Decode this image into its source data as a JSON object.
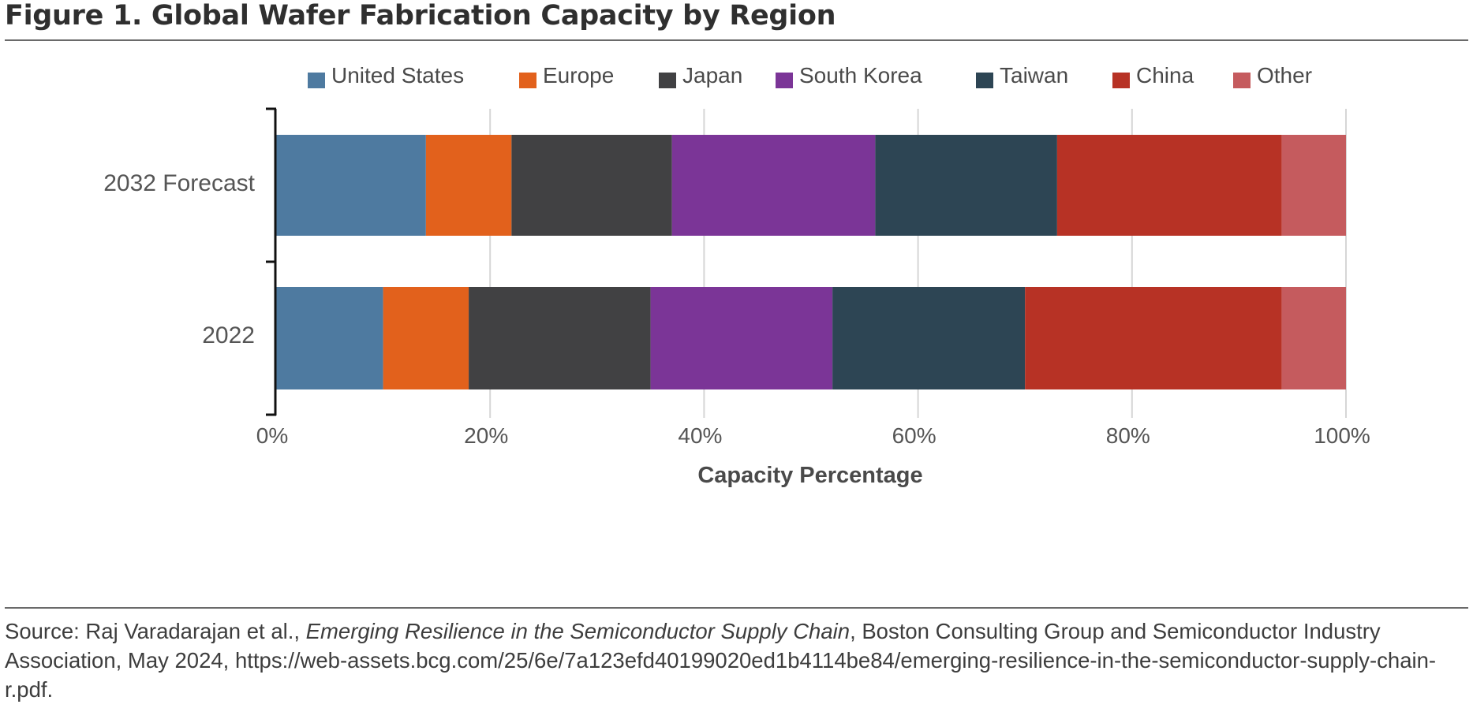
{
  "figure": {
    "title": "Figure 1. Global Wafer Fabrication Capacity by Region"
  },
  "chart_data": {
    "type": "bar",
    "orientation": "horizontal",
    "stacked": true,
    "categories": [
      "2032 Forecast",
      "2022"
    ],
    "series": [
      {
        "name": "United States",
        "color": "#4e7aa0",
        "values": [
          14,
          10
        ]
      },
      {
        "name": "Europe",
        "color": "#e2611c",
        "values": [
          8,
          8
        ]
      },
      {
        "name": "Japan",
        "color": "#414143",
        "values": [
          15,
          17
        ]
      },
      {
        "name": "South Korea",
        "color": "#7b3597",
        "values": [
          19,
          17
        ]
      },
      {
        "name": "Taiwan",
        "color": "#2d4554",
        "values": [
          17,
          18
        ]
      },
      {
        "name": "China",
        "color": "#b73225",
        "values": [
          21,
          24
        ]
      },
      {
        "name": "Other",
        "color": "#c55b5e",
        "values": [
          6,
          6
        ]
      }
    ],
    "xlabel": "Capacity Percentage",
    "ylabel": "",
    "xlim": [
      0,
      100
    ],
    "xticks": [
      "0%",
      "20%",
      "40%",
      "60%",
      "80%",
      "100%"
    ],
    "grid": true,
    "legend_position": "top"
  },
  "source": {
    "prefix": "Source: Raj Varadarajan et al., ",
    "italic": "Emerging Resilience in the Semiconductor Supply Chain",
    "suffix": ", Boston Consulting Group and Semiconductor Industry Association, May 2024, https://web-assets.bcg.com/25/6e/7a123efd40199020ed1b4114be84/emerging-resilience-in-the-semiconductor-supply-chain-r.pdf."
  }
}
